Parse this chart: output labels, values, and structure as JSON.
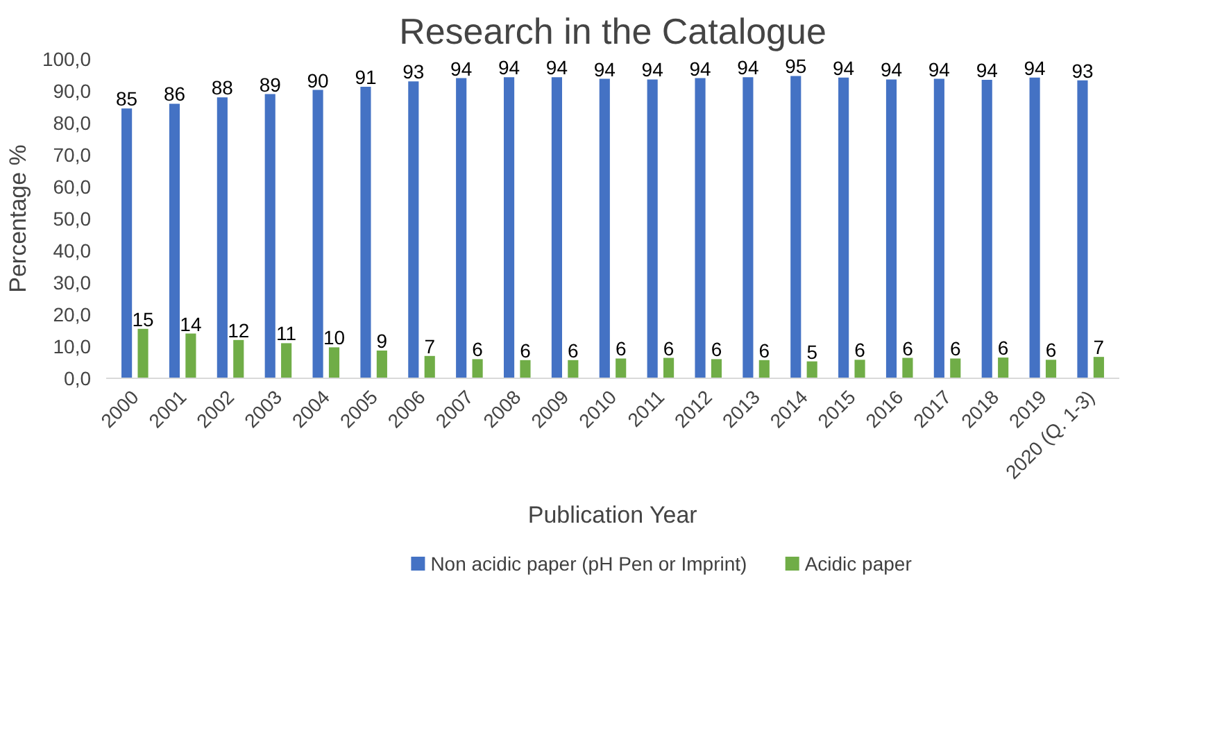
{
  "chart_data": {
    "type": "bar",
    "title": "Research in the Catalogue",
    "xlabel": "Publication Year",
    "ylabel": "Percentage %",
    "categories": [
      "2000",
      "2001",
      "2002",
      "2003",
      "2004",
      "2005",
      "2006",
      "2007",
      "2008",
      "2009",
      "2010",
      "2011",
      "2012",
      "2013",
      "2014",
      "2015",
      "2016",
      "2017",
      "2018",
      "2019",
      "2020 (Q. 1-3)"
    ],
    "series": [
      {
        "name": "Non acidic paper (pH Pen or Imprint)",
        "color": "#4472c4",
        "values": [
          84.5,
          86,
          88,
          89,
          90.3,
          91.3,
          93,
          94,
          94.3,
          94.3,
          93.8,
          93.6,
          94,
          94.3,
          94.7,
          94.2,
          93.6,
          93.8,
          93.5,
          94.2,
          93.3
        ],
        "value_labels": [
          "85",
          "86",
          "88",
          "89",
          "90",
          "91",
          "93",
          "94",
          "94",
          "94",
          "94",
          "94",
          "94",
          "94",
          "95",
          "94",
          "94",
          "94",
          "94",
          "94",
          "93"
        ]
      },
      {
        "name": "Acidic paper",
        "color": "#70ad47",
        "values": [
          15.5,
          14,
          12,
          11,
          9.7,
          8.7,
          7,
          6,
          5.7,
          5.7,
          6.2,
          6.4,
          6,
          5.7,
          5.3,
          5.8,
          6.4,
          6.2,
          6.5,
          5.8,
          6.7
        ],
        "value_labels": [
          "15",
          "14",
          "12",
          "11",
          "10",
          "9",
          "7",
          "6",
          "6",
          "6",
          "6",
          "6",
          "6",
          "6",
          "5",
          "6",
          "6",
          "6",
          "6",
          "6",
          "7"
        ]
      }
    ],
    "ylim": [
      0,
      100
    ],
    "yticks": [
      {
        "value": 0,
        "label": "0,0"
      },
      {
        "value": 10,
        "label": "10,0"
      },
      {
        "value": 20,
        "label": "20,0"
      },
      {
        "value": 30,
        "label": "30,0"
      },
      {
        "value": 40,
        "label": "40,0"
      },
      {
        "value": 50,
        "label": "50,0"
      },
      {
        "value": 60,
        "label": "60,0"
      },
      {
        "value": 70,
        "label": "70,0"
      },
      {
        "value": 80,
        "label": "80,0"
      },
      {
        "value": 90,
        "label": "90,0"
      },
      {
        "value": 100,
        "label": "100,0"
      }
    ],
    "grid": false,
    "legend": "bottom"
  }
}
